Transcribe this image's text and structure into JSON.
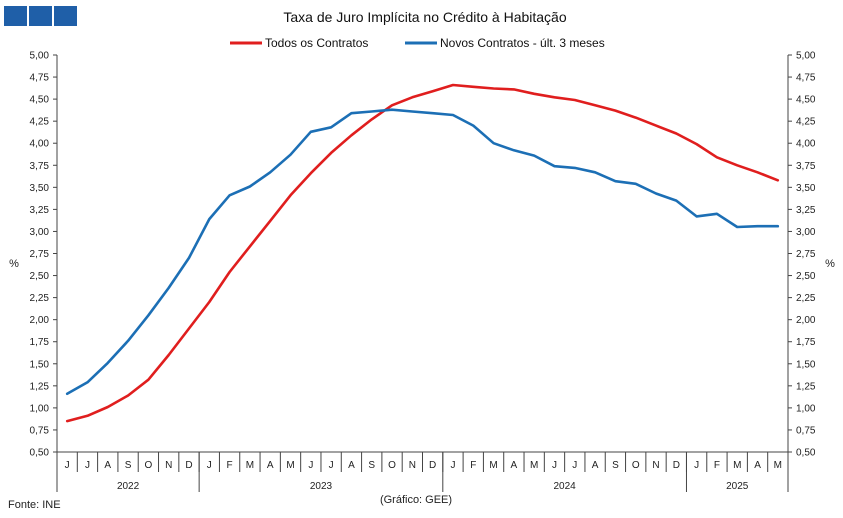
{
  "chart_data": {
    "type": "line",
    "title": "Taxa de Juro Implícita  no Crédito à Habitação",
    "ylabel_left": "%",
    "ylabel_right": "%",
    "ylim": [
      0.5,
      5.0
    ],
    "yticks": [
      "0,50",
      "0,75",
      "1,00",
      "1,25",
      "1,50",
      "1,75",
      "2,00",
      "2,25",
      "2,50",
      "2,75",
      "3,00",
      "3,25",
      "3,50",
      "3,75",
      "4,00",
      "4,25",
      "4,50",
      "4,75",
      "5,00"
    ],
    "x": [
      "J",
      "J",
      "A",
      "S",
      "O",
      "N",
      "D",
      "J",
      "F",
      "M",
      "A",
      "M",
      "J",
      "J",
      "A",
      "S",
      "O",
      "N",
      "D",
      "J",
      "F",
      "M",
      "A",
      "M",
      "J",
      "J",
      "A",
      "S",
      "O",
      "N",
      "D",
      "J",
      "F",
      "M",
      "A",
      "M"
    ],
    "years": [
      "2022",
      "2023",
      "2024",
      "2025"
    ],
    "grid": false,
    "legend_position": "top",
    "series": [
      {
        "name": "Todos os Contratos",
        "color": "#e01e1e",
        "values": [
          0.85,
          0.91,
          1.01,
          1.14,
          1.32,
          1.6,
          1.9,
          2.2,
          2.54,
          2.83,
          3.12,
          3.41,
          3.66,
          3.89,
          4.09,
          4.27,
          4.43,
          4.52,
          4.59,
          4.66,
          4.64,
          4.62,
          4.61,
          4.56,
          4.52,
          4.49,
          4.43,
          4.37,
          4.29,
          4.2,
          4.11,
          3.99,
          3.84,
          3.75,
          3.67,
          3.58
        ]
      },
      {
        "name": "Novos Contratos - últ. 3 meses",
        "color": "#1c6fb5",
        "values": [
          1.16,
          1.29,
          1.51,
          1.76,
          2.05,
          2.36,
          2.7,
          3.14,
          3.41,
          3.51,
          3.67,
          3.87,
          4.13,
          4.18,
          4.34,
          4.36,
          4.38,
          4.36,
          4.34,
          4.32,
          4.2,
          4.0,
          3.92,
          3.86,
          3.74,
          3.72,
          3.67,
          3.57,
          3.54,
          3.43,
          3.35,
          3.17,
          3.2,
          3.05,
          3.06,
          3.06
        ]
      }
    ],
    "source": "Fonte: INE",
    "credit": "(Gráfico: GEE)"
  }
}
